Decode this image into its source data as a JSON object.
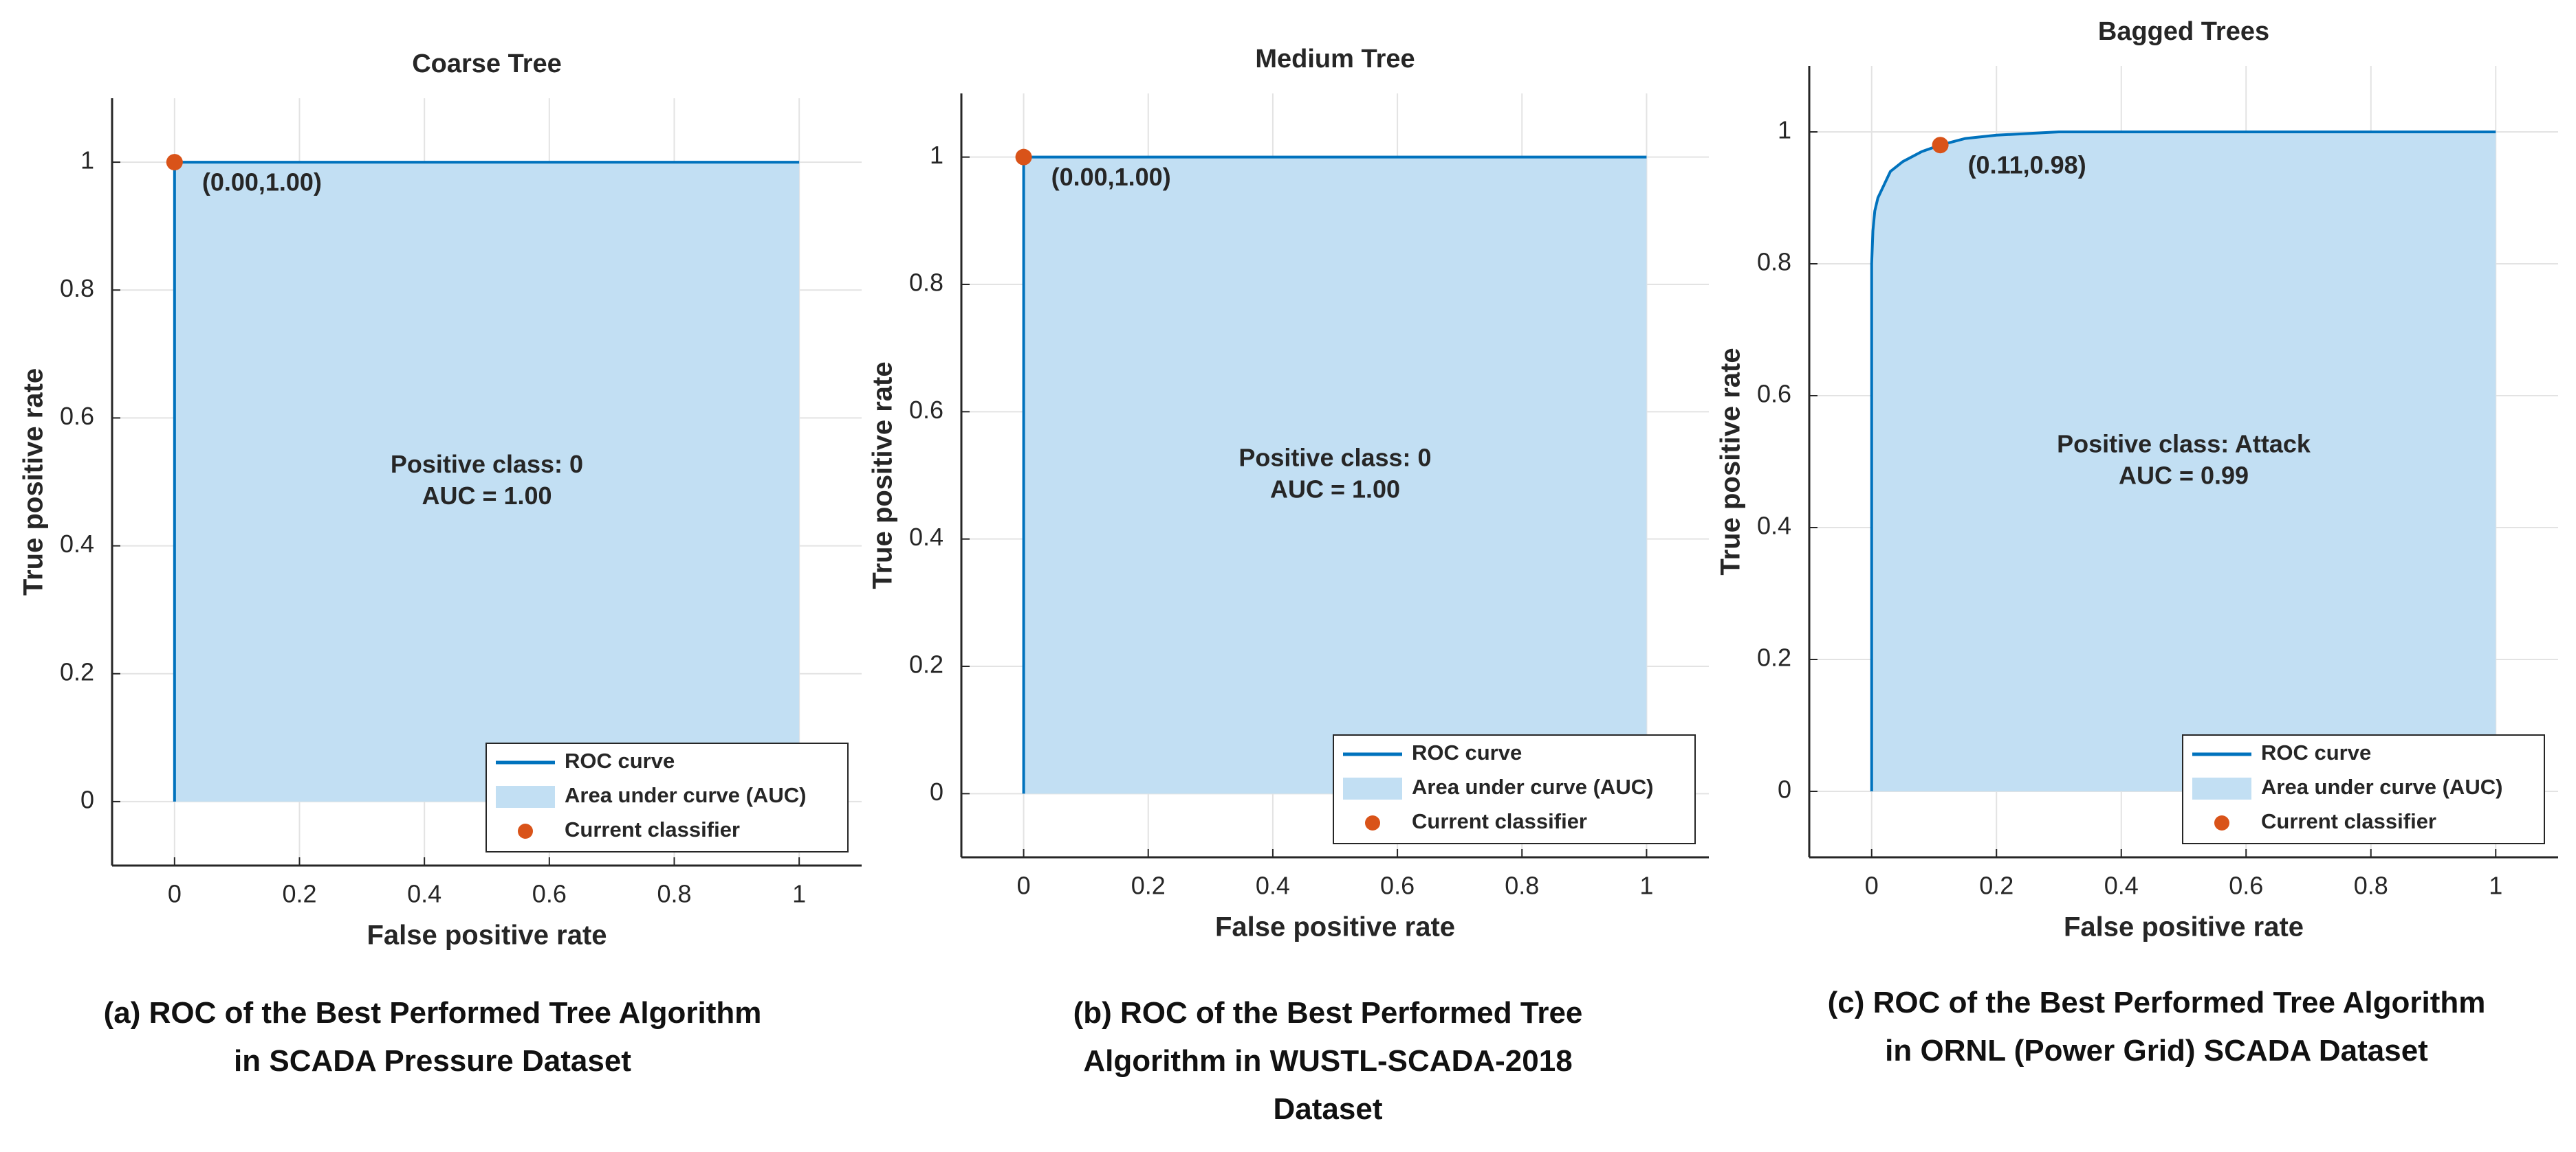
{
  "chart_data": [
    {
      "type": "line",
      "title": "Coarse Tree",
      "xlabel": "False positive rate",
      "ylabel": "True positive rate",
      "xlim": [
        -0.1,
        1.1
      ],
      "ylim": [
        -0.1,
        1.1
      ],
      "xticks": [
        0,
        0.2,
        0.4,
        0.6,
        0.8,
        1
      ],
      "yticks": [
        0,
        0.2,
        0.4,
        0.6,
        0.8,
        1
      ],
      "grid": true,
      "series": [
        {
          "name": "ROC curve",
          "color": "#0072bd",
          "x": [
            0,
            0,
            1
          ],
          "values": [
            0,
            1,
            1
          ]
        }
      ],
      "area": {
        "name": "Area under curve (AUC)",
        "color": "#c2dff3"
      },
      "point": {
        "name": "Current classifier",
        "color": "#d95319",
        "x": 0,
        "y": 1,
        "label": "(0.00,1.00)"
      },
      "annotation": [
        "Positive class: 0",
        "AUC = 1.00"
      ],
      "legend": "lower right",
      "caption": "(a) ROC of the Best Performed Tree Algorithm in SCADA Pressure Dataset"
    },
    {
      "type": "line",
      "title": "Medium Tree",
      "xlabel": "False positive rate",
      "ylabel": "True positive rate",
      "xlim": [
        -0.1,
        1.1
      ],
      "ylim": [
        -0.1,
        1.1
      ],
      "xticks": [
        0,
        0.2,
        0.4,
        0.6,
        0.8,
        1
      ],
      "yticks": [
        0,
        0.2,
        0.4,
        0.6,
        0.8,
        1
      ],
      "grid": true,
      "series": [
        {
          "name": "ROC curve",
          "color": "#0072bd",
          "x": [
            0,
            0,
            1
          ],
          "values": [
            0,
            1,
            1
          ]
        }
      ],
      "area": {
        "name": "Area under curve (AUC)",
        "color": "#c2dff3"
      },
      "point": {
        "name": "Current classifier",
        "color": "#d95319",
        "x": 0,
        "y": 1,
        "label": "(0.00,1.00)"
      },
      "annotation": [
        "Positive class: 0",
        "AUC = 1.00"
      ],
      "legend": "lower right",
      "caption": "(b) ROC of the Best Performed Tree Algorithm in WUSTL-SCADA-2018 Dataset"
    },
    {
      "type": "line",
      "title": "Bagged Trees",
      "xlabel": "False positive rate",
      "ylabel": "True positive rate",
      "xlim": [
        -0.1,
        1.1
      ],
      "ylim": [
        -0.1,
        1.1
      ],
      "xticks": [
        0,
        0.2,
        0.4,
        0.6,
        0.8,
        1
      ],
      "yticks": [
        0,
        0.2,
        0.4,
        0.6,
        0.8,
        1
      ],
      "grid": true,
      "series": [
        {
          "name": "ROC curve",
          "color": "#0072bd",
          "x": [
            0,
            0,
            0.002,
            0.005,
            0.01,
            0.02,
            0.03,
            0.05,
            0.08,
            0.11,
            0.15,
            0.2,
            0.3,
            0.5,
            1
          ],
          "values": [
            0,
            0.8,
            0.85,
            0.88,
            0.9,
            0.92,
            0.94,
            0.955,
            0.97,
            0.98,
            0.99,
            0.995,
            1,
            1,
            1
          ]
        }
      ],
      "area": {
        "name": "Area under curve (AUC)",
        "color": "#c2dff3"
      },
      "point": {
        "name": "Current classifier",
        "color": "#d95319",
        "x": 0.11,
        "y": 0.98,
        "label": "(0.11,0.98)"
      },
      "annotation": [
        "Positive class: Attack",
        "AUC = 0.99"
      ],
      "legend": "lower right",
      "caption": "(c) ROC of the Best Performed Tree Algorithm in ORNL (Power Grid) SCADA Dataset"
    }
  ]
}
